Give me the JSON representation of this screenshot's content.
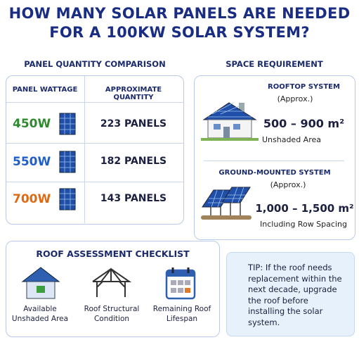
{
  "header": {
    "title": "HOW MANY SOLAR PANELS ARE NEEDED FOR A 100KW SOLAR SYSTEM?"
  },
  "comparison": {
    "heading": "PANEL QUANTITY COMPARISON",
    "columns": [
      "PANEL WATTAGE",
      "APPROXIMATE QUANTITY"
    ],
    "rows": [
      [
        "450W",
        "223 PANELS"
      ],
      [
        "550W",
        "182 PANELS"
      ],
      [
        "700W",
        "143 PANELS"
      ]
    ]
  },
  "space": {
    "heading": "SPACE REQUIREMENT",
    "rooftop": {
      "title": "ROOFTOP SYSTEM",
      "note": "(Approx.)",
      "area": "500 – 900 m²",
      "detail": "Unshaded Area"
    },
    "ground": {
      "title": "GROUND-MOUNTED SYSTEM",
      "note": "(Approx.)",
      "area": "1,000 – 1,500 m²",
      "detail": "Including Row Spacing"
    }
  },
  "checklist": {
    "heading": "ROOF ASSESSMENT CHECKLIST",
    "items": [
      "Available Unshaded Area",
      "Roof Structural Condition",
      "Remaining Roof Lifespan"
    ]
  },
  "tip": "TIP: If the roof needs replacement within the next decade, upgrade the roof before installing the solar system."
}
